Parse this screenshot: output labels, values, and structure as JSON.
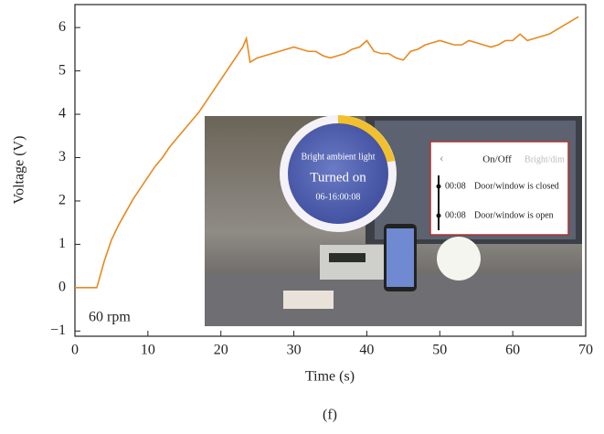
{
  "chart_data": {
    "type": "line",
    "x_label": "Time (s)",
    "y_label": "Voltage (V)",
    "x": [
      0,
      3,
      4,
      5,
      6,
      7,
      8,
      9,
      10,
      11,
      12,
      13,
      14,
      15,
      16,
      17,
      18,
      19,
      20,
      21,
      22,
      23,
      23.5,
      24,
      25,
      26,
      27,
      28,
      29,
      30,
      31,
      32,
      33,
      34,
      35,
      36,
      37,
      38,
      39,
      40,
      41,
      42,
      43,
      44,
      45,
      46,
      47,
      48,
      49,
      50,
      51,
      52,
      53,
      54,
      55,
      56,
      57,
      58,
      59,
      60,
      61,
      62,
      63,
      64,
      65,
      66,
      67,
      68,
      69
    ],
    "series": [
      {
        "color": "#e8891e",
        "values": [
          0,
          0,
          0.6,
          1.1,
          1.45,
          1.75,
          2.05,
          2.3,
          2.55,
          2.8,
          3.0,
          3.25,
          3.45,
          3.65,
          3.85,
          4.05,
          4.3,
          4.55,
          4.8,
          5.05,
          5.3,
          5.55,
          5.75,
          5.2,
          5.3,
          5.35,
          5.4,
          5.45,
          5.5,
          5.55,
          5.5,
          5.45,
          5.45,
          5.35,
          5.3,
          5.35,
          5.4,
          5.5,
          5.55,
          5.7,
          5.45,
          5.4,
          5.4,
          5.3,
          5.25,
          5.45,
          5.5,
          5.6,
          5.65,
          5.7,
          5.65,
          5.6,
          5.6,
          5.7,
          5.65,
          5.6,
          5.55,
          5.6,
          5.7,
          5.7,
          5.85,
          5.7,
          5.75,
          5.8,
          5.85,
          5.95,
          6.05,
          6.15,
          6.25
        ]
      }
    ],
    "xlim": [
      0,
      70
    ],
    "xticks": [
      0,
      10,
      20,
      30,
      40,
      50,
      60,
      70
    ],
    "ylim": [
      -1.12,
      6.53
    ],
    "yticks": [
      {
        "value": -1,
        "label": "−1"
      },
      0,
      1,
      2,
      3,
      4,
      5,
      6
    ],
    "annotation": "60 rpm",
    "inset": {
      "circle": [
        "Bright ambient light",
        "Turned on",
        "06-16:00:08"
      ],
      "panel": {
        "tabs": [
          "On/Off",
          "Bright/dim"
        ],
        "events": [
          [
            "00:08",
            "Door/window is closed"
          ],
          [
            "00:08",
            "Door/window is open"
          ]
        ]
      }
    },
    "caption": "(f)"
  }
}
